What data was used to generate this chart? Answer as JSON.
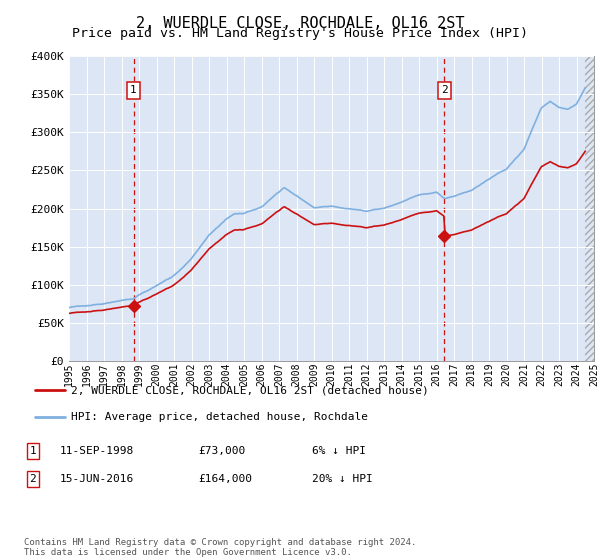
{
  "title": "2, WUERDLE CLOSE, ROCHDALE, OL16 2ST",
  "subtitle": "Price paid vs. HM Land Registry's House Price Index (HPI)",
  "title_fontsize": 11,
  "subtitle_fontsize": 9.5,
  "ylabel_ticks": [
    "£0",
    "£50K",
    "£100K",
    "£150K",
    "£200K",
    "£250K",
    "£300K",
    "£350K",
    "£400K"
  ],
  "ylim": [
    0,
    400000
  ],
  "xlim_years": [
    1995.0,
    2025.0
  ],
  "background_color": "#dce6f5",
  "plot_bg_color": "#dce6f5",
  "hpi_color": "#7fb0e0",
  "price_color": "#cc1111",
  "hpi_linewidth": 1.2,
  "price_linewidth": 1.2,
  "marker1_x": 1998.69,
  "marker1_y": 73000,
  "marker2_x": 2016.45,
  "marker2_y": 164000,
  "legend_line1": "2, WUERDLE CLOSE, ROCHDALE, OL16 2ST (detached house)",
  "legend_line2": "HPI: Average price, detached house, Rochdale",
  "table_row1": [
    "1",
    "11-SEP-1998",
    "£73,000",
    "6% ↓ HPI"
  ],
  "table_row2": [
    "2",
    "15-JUN-2016",
    "£164,000",
    "20% ↓ HPI"
  ],
  "footnote": "Contains HM Land Registry data © Crown copyright and database right 2024.\nThis data is licensed under the Open Government Licence v3.0.",
  "hatch_start": 2024.5
}
